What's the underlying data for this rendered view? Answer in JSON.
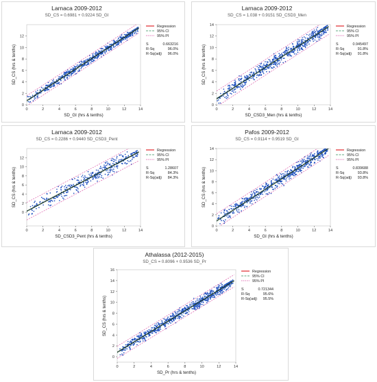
{
  "legend": {
    "regression": "Regression",
    "ci": "95% CI",
    "pi": "95% PI"
  },
  "stat_labels": {
    "s": "S",
    "rsq": "R-Sq",
    "rsqadj": "R-Sq(adj)"
  },
  "colors": {
    "points": "#1f4fbf",
    "regression": "#e0262a",
    "ci": "#2e8b57",
    "pi": "#d6429c",
    "frame": "#d9d9d9"
  },
  "chart_data": [
    {
      "type": "scatter",
      "title": "Larnaca 2009-2012",
      "subtitle": "SD_CS = 0.6981 + 0.9224 SD_GI",
      "xlabel": "SD_GI (hrs & tenths)",
      "ylabel": "SD_CS (hrs & tenths)",
      "xlim": [
        0,
        14
      ],
      "ylim": [
        0,
        14
      ],
      "xticks": [
        0,
        2,
        4,
        6,
        8,
        10,
        12,
        14
      ],
      "yticks": [
        0,
        2,
        4,
        6,
        8,
        10,
        12
      ],
      "intercept": 0.6981,
      "slope": 0.9224,
      "stats": {
        "s": "0.663216",
        "rsq": "96.0%",
        "rsqadj": "96.0%"
      },
      "series": [
        {
          "name": "Regression"
        },
        {
          "name": "95% CI"
        },
        {
          "name": "95% PI"
        }
      ]
    },
    {
      "type": "scatter",
      "title": "Larnaca 2009-2012",
      "subtitle": "SD_CS = 1.038 + 0.9151 SD_CSD3_Men",
      "xlabel": "SD_CSD3_Men (hrs & tenths)",
      "ylabel": "SD_CS (hrs & tenths)",
      "xlim": [
        0,
        14
      ],
      "ylim": [
        0,
        14
      ],
      "xticks": [
        0,
        2,
        4,
        6,
        8,
        10,
        12,
        14
      ],
      "yticks": [
        0,
        2,
        4,
        6,
        8,
        10,
        12,
        14
      ],
      "intercept": 1.038,
      "slope": 0.9151,
      "stats": {
        "s": "0.945497",
        "rsq": "91.8%",
        "rsqadj": "91.8%"
      },
      "series": [
        {
          "name": "Regression"
        },
        {
          "name": "95% CI"
        },
        {
          "name": "95% PI"
        }
      ]
    },
    {
      "type": "scatter",
      "title": "Larnaca 2009-2012",
      "subtitle": "SD_CS = 0.2286 + 0.9440 SD_CSD3_Pent",
      "xlabel": "SD_CSD3_Pent (hrs & tenths)",
      "ylabel": "SD_CS (hrs & tenths)",
      "xlim": [
        0,
        14
      ],
      "ylim": [
        -3,
        14
      ],
      "xticks": [
        0,
        2,
        4,
        6,
        8,
        10,
        12,
        14
      ],
      "yticks": [
        0,
        2,
        4,
        6,
        8,
        10,
        12
      ],
      "intercept": 0.2286,
      "slope": 0.944,
      "stats": {
        "s": "1.28607",
        "rsq": "84.3%",
        "rsqadj": "84.3%"
      },
      "series": [
        {
          "name": "Regression"
        },
        {
          "name": "95% CI"
        },
        {
          "name": "95% PI"
        }
      ]
    },
    {
      "type": "scatter",
      "title": "Pafos 2009-2012",
      "subtitle": "SD_CS = 0.9114 + 0.9519 SD_GI",
      "xlabel": "SD_GI (hrs & tenths)",
      "ylabel": "SD_CS (hrs & tenths)",
      "xlim": [
        0,
        14
      ],
      "ylim": [
        0,
        14
      ],
      "xticks": [
        0,
        2,
        4,
        6,
        8,
        10,
        12,
        14
      ],
      "yticks": [
        0,
        2,
        4,
        6,
        8,
        10,
        12,
        14
      ],
      "intercept": 0.9114,
      "slope": 0.9519,
      "stats": {
        "s": "0.839688",
        "rsq": "93.8%",
        "rsqadj": "93.8%"
      },
      "series": [
        {
          "name": "Regression"
        },
        {
          "name": "95% CI"
        },
        {
          "name": "95% PI"
        }
      ]
    },
    {
      "type": "scatter",
      "title": "Athalassa (2012-2015)",
      "subtitle": "SD_CS = 0.8096 + 0.9536 SD_Pr",
      "xlabel": "SD_Pr (hrs & tenths)",
      "ylabel": "SD_CS (hrs & tenths)",
      "xlim": [
        0,
        14
      ],
      "ylim": [
        -1,
        16
      ],
      "xticks": [
        0,
        2,
        4,
        6,
        8,
        10,
        12,
        14
      ],
      "yticks": [
        0,
        2,
        4,
        6,
        8,
        10,
        12,
        14,
        16
      ],
      "intercept": 0.8096,
      "slope": 0.9536,
      "stats": {
        "s": "0.721344",
        "rsq": "95.6%",
        "rsqadj": "95.5%"
      },
      "series": [
        {
          "name": "Regression"
        },
        {
          "name": "95% CI"
        },
        {
          "name": "95% PI"
        }
      ]
    }
  ]
}
